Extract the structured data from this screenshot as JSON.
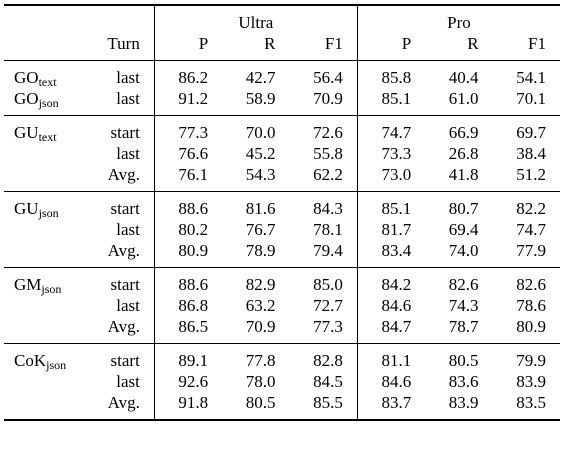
{
  "header": {
    "ultra": "Ultra",
    "pro": "Pro",
    "turn": "Turn",
    "p": "P",
    "r": "R",
    "f1": "F1"
  },
  "groups": [
    {
      "rows": [
        {
          "base": "GO",
          "sub": "text",
          "turn": "last",
          "values": [
            "86.2",
            "42.7",
            "56.4",
            "85.8",
            "40.4",
            "54.1"
          ],
          "bold": [
            false,
            false,
            false,
            false,
            false,
            false
          ]
        },
        {
          "base": "GO",
          "sub": "json",
          "turn": "last",
          "values": [
            "91.2",
            "58.9",
            "70.9",
            "85.1",
            "61.0",
            "70.1"
          ],
          "bold": [
            false,
            false,
            false,
            false,
            false,
            false
          ]
        }
      ]
    },
    {
      "base": "GU",
      "sub": "text",
      "rows": [
        {
          "turn": "start",
          "values": [
            "77.3",
            "70.0",
            "72.6",
            "74.7",
            "66.9",
            "69.7"
          ],
          "bold": [
            false,
            false,
            false,
            false,
            false,
            false
          ]
        },
        {
          "turn": "last",
          "values": [
            "76.6",
            "45.2",
            "55.8",
            "73.3",
            "26.8",
            "38.4"
          ],
          "bold": [
            false,
            false,
            false,
            false,
            false,
            false
          ]
        },
        {
          "turn": "Avg.",
          "values": [
            "76.1",
            "54.3",
            "62.2",
            "73.0",
            "41.8",
            "51.2"
          ],
          "bold": [
            false,
            false,
            false,
            false,
            false,
            false
          ]
        }
      ]
    },
    {
      "base": "GU",
      "sub": "json",
      "rows": [
        {
          "turn": "start",
          "values": [
            "88.6",
            "81.6",
            "84.3",
            "85.1",
            "80.7",
            "82.2"
          ],
          "bold": [
            false,
            false,
            false,
            false,
            false,
            false
          ]
        },
        {
          "turn": "last",
          "values": [
            "80.2",
            "76.7",
            "78.1",
            "81.7",
            "69.4",
            "74.7"
          ],
          "bold": [
            false,
            false,
            false,
            false,
            false,
            false
          ]
        },
        {
          "turn": "Avg.",
          "values": [
            "80.9",
            "78.9",
            "79.4",
            "83.4",
            "74.0",
            "77.9"
          ],
          "bold": [
            false,
            false,
            false,
            false,
            false,
            false
          ]
        }
      ]
    },
    {
      "base": "GM",
      "sub": "json",
      "rows": [
        {
          "turn": "start",
          "values": [
            "88.6",
            "82.9",
            "85.0",
            "84.2",
            "82.6",
            "82.6"
          ],
          "bold": [
            false,
            false,
            false,
            false,
            false,
            false
          ]
        },
        {
          "turn": "last",
          "values": [
            "86.8",
            "63.2",
            "72.7",
            "84.6",
            "74.3",
            "78.6"
          ],
          "bold": [
            false,
            false,
            false,
            false,
            false,
            false
          ]
        },
        {
          "turn": "Avg.",
          "values": [
            "86.5",
            "70.9",
            "77.3",
            "84.7",
            "78.7",
            "80.9"
          ],
          "bold": [
            false,
            false,
            false,
            true,
            false,
            false
          ]
        }
      ]
    },
    {
      "base": "CoK",
      "sub": "json",
      "rows": [
        {
          "turn": "start",
          "values": [
            "89.1",
            "77.8",
            "82.8",
            "81.1",
            "80.5",
            "79.9"
          ],
          "bold": [
            false,
            false,
            false,
            false,
            false,
            false
          ]
        },
        {
          "turn": "last",
          "values": [
            "92.6",
            "78.0",
            "84.5",
            "84.6",
            "83.6",
            "83.9"
          ],
          "bold": [
            false,
            false,
            false,
            false,
            false,
            false
          ]
        },
        {
          "turn": "Avg.",
          "values": [
            "91.8",
            "80.5",
            "85.5",
            "83.7",
            "83.9",
            "83.5"
          ],
          "bold": [
            true,
            true,
            true,
            false,
            true,
            true
          ]
        }
      ]
    }
  ]
}
